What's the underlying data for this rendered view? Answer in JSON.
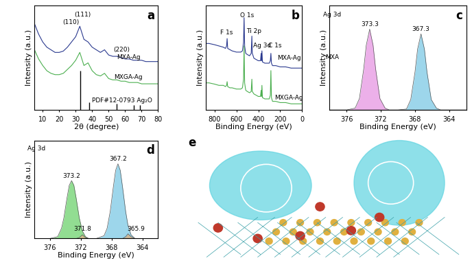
{
  "chart_data": [
    {
      "type": "line",
      "title": "a",
      "xlabel": "2θ (degree)",
      "ylabel": "Intensity (a.u.)",
      "xlim": [
        5,
        80
      ],
      "ylim": [
        0.2,
        1.0
      ],
      "xticks": [
        10,
        20,
        30,
        40,
        50,
        60,
        70,
        80
      ],
      "yticks": [],
      "tick_labels": "x",
      "x": [
        5,
        7.5,
        10,
        12.5,
        15,
        17.5,
        20,
        22.5,
        25,
        27.5,
        30,
        32.5,
        35,
        37.5,
        40,
        42.5,
        45,
        47.5,
        50,
        52.5,
        55,
        57.5,
        60,
        62.5,
        65,
        67.5,
        70,
        72.5,
        75,
        77.5,
        80
      ],
      "series": [
        {
          "type": "line",
          "color": "#2b3a8f",
          "values": [
            0.86,
            0.78,
            0.72,
            0.68,
            0.66,
            0.64,
            0.64,
            0.65,
            0.68,
            0.72,
            0.76,
            0.84,
            0.74,
            0.72,
            0.68,
            0.66,
            0.64,
            0.66,
            0.62,
            0.61,
            0.61,
            0.6,
            0.59,
            0.59,
            0.58,
            0.58,
            0.58,
            0.57,
            0.57,
            0.57,
            0.57
          ]
        },
        {
          "type": "line",
          "color": "#4caf50",
          "values": [
            0.66,
            0.59,
            0.54,
            0.5,
            0.48,
            0.47,
            0.47,
            0.48,
            0.51,
            0.54,
            0.58,
            0.64,
            0.54,
            0.56,
            0.5,
            0.47,
            0.46,
            0.48,
            0.44,
            0.43,
            0.43,
            0.42,
            0.42,
            0.41,
            0.41,
            0.41,
            0.4,
            0.4,
            0.4,
            0.4,
            0.4
          ]
        },
        {
          "type": "stem",
          "color": "#000000",
          "x": [
            32.8,
            38.1,
            54.9,
            65.4,
            68.8
          ],
          "values": [
            0.5,
            0.26,
            0.25,
            0.24,
            0.24
          ]
        }
      ],
      "annotations": [
        {
          "text": "(110)",
          "x": 27,
          "y": 0.87
        },
        {
          "text": "(111)",
          "x": 34,
          "y": 0.93
        },
        {
          "text": "(220)",
          "x": 58,
          "y": 0.66
        },
        {
          "text": "MXA-Ag",
          "x": 62,
          "y": 0.6
        },
        {
          "text": "MXGA-Ag",
          "x": 62,
          "y": 0.45
        },
        {
          "text": "PDF#12-0793 Ag₂O",
          "x": 58,
          "y": 0.27
        }
      ]
    },
    {
      "type": "line",
      "title": "b",
      "xlabel": "Binding Energy (eV)",
      "ylabel": "Intensity (a.u.)",
      "xlim": [
        880,
        0
      ],
      "ylim": [
        0.2,
        1.05
      ],
      "xticks": [
        800,
        600,
        400,
        200,
        0
      ],
      "yticks": [],
      "tick_labels": "x",
      "x": [
        880,
        850,
        800,
        760,
        720,
        700,
        690,
        685,
        680,
        660,
        640,
        600,
        560,
        545,
        535,
        530,
        525,
        515,
        500,
        480,
        465,
        459,
        455,
        440,
        420,
        400,
        380,
        374,
        370,
        367,
        362,
        340,
        300,
        290,
        285,
        280,
        270,
        240,
        200,
        150,
        100,
        60,
        30,
        0
      ],
      "series": [
        {
          "type": "line",
          "color": "#2b3a8f",
          "values": [
            0.74,
            0.74,
            0.73,
            0.72,
            0.71,
            0.7,
            0.72,
            0.78,
            0.7,
            0.69,
            0.68,
            0.67,
            0.67,
            0.68,
            0.75,
            0.95,
            0.72,
            0.66,
            0.65,
            0.64,
            0.66,
            0.8,
            0.66,
            0.62,
            0.61,
            0.6,
            0.6,
            0.66,
            0.6,
            0.68,
            0.59,
            0.58,
            0.58,
            0.6,
            0.66,
            0.58,
            0.56,
            0.56,
            0.55,
            0.55,
            0.54,
            0.54,
            0.54,
            0.54
          ]
        },
        {
          "type": "line",
          "color": "#4caf50",
          "values": [
            0.42,
            0.42,
            0.41,
            0.4,
            0.4,
            0.39,
            0.4,
            0.43,
            0.39,
            0.38,
            0.38,
            0.37,
            0.37,
            0.38,
            0.45,
            0.72,
            0.42,
            0.36,
            0.35,
            0.34,
            0.35,
            0.45,
            0.35,
            0.33,
            0.32,
            0.31,
            0.31,
            0.36,
            0.31,
            0.4,
            0.3,
            0.29,
            0.29,
            0.32,
            0.52,
            0.3,
            0.27,
            0.27,
            0.26,
            0.26,
            0.25,
            0.25,
            0.25,
            0.25
          ]
        }
      ],
      "annotations": [
        {
          "text": "F 1s",
          "x": 690,
          "y": 0.83
        },
        {
          "text": "O 1s",
          "x": 505,
          "y": 0.97
        },
        {
          "text": "Ti 2p",
          "x": 440,
          "y": 0.84
        },
        {
          "text": "Ag 3d",
          "x": 368,
          "y": 0.72
        },
        {
          "text": "C 1s",
          "x": 250,
          "y": 0.72
        },
        {
          "text": "MXA-Ag",
          "x": 120,
          "y": 0.62
        },
        {
          "text": "MXGA-Ag",
          "x": 120,
          "y": 0.3
        }
      ]
    },
    {
      "type": "line",
      "title": "c",
      "xlabel": "Binding Energy (eV)",
      "ylabel": "Intensity (a.u.)",
      "xlim": [
        378,
        362
      ],
      "ylim": [
        0,
        1.1
      ],
      "xticks": [
        376,
        372,
        368,
        364
      ],
      "yticks": [],
      "tick_labels": "x",
      "x": [
        378,
        377,
        376,
        375,
        374.5,
        374.0,
        373.7,
        373.3,
        372.9,
        372.6,
        372.1,
        371.5,
        371,
        370,
        369,
        368.5,
        368.0,
        367.7,
        367.3,
        366.9,
        366.6,
        366.1,
        365.5,
        365,
        364,
        363,
        362
      ],
      "series": [
        {
          "type": "area",
          "color": "#e9a3e6",
          "values": [
            0,
            0,
            0,
            0.02,
            0.12,
            0.43,
            0.68,
            0.85,
            0.68,
            0.43,
            0.12,
            0.02,
            0,
            0,
            0,
            0,
            0,
            0,
            0,
            0,
            0,
            0,
            0,
            0,
            0,
            0,
            0
          ]
        },
        {
          "type": "area",
          "color": "#8ccfe8",
          "values": [
            0,
            0,
            0,
            0,
            0,
            0,
            0,
            0,
            0,
            0,
            0,
            0,
            0,
            0,
            0.01,
            0.11,
            0.4,
            0.64,
            0.8,
            0.64,
            0.4,
            0.11,
            0.02,
            0,
            0,
            0,
            0
          ]
        }
      ],
      "annotations": [
        {
          "text": "Ag 3d",
          "x": 377.7,
          "y": 1.0
        },
        {
          "text": "MXA",
          "x": 377.7,
          "y": 0.55
        },
        {
          "text": "373.3",
          "x": 373.3,
          "y": 0.9
        },
        {
          "text": "367.3",
          "x": 367.3,
          "y": 0.85
        }
      ]
    },
    {
      "type": "line",
      "title": "d",
      "xlabel": "Binding Energy (eV)",
      "ylabel": "Intensity (a.u.)",
      "xlim": [
        378,
        362
      ],
      "ylim": [
        0,
        1.05
      ],
      "xticks": [
        376,
        372,
        368,
        364
      ],
      "yticks": [],
      "tick_labels": "x",
      "x": [
        378,
        377,
        376,
        375,
        374.5,
        374.2,
        373.8,
        373.5,
        373.2,
        372.9,
        372.6,
        372.2,
        371.8,
        371.4,
        371,
        370,
        369,
        368.6,
        368.2,
        367.8,
        367.5,
        367.2,
        366.9,
        366.6,
        366.2,
        365.9,
        365.5,
        365,
        364,
        363,
        362
      ],
      "series": [
        {
          "type": "area",
          "color": "#7fd77f",
          "values": [
            0,
            0,
            0,
            0.02,
            0.11,
            0.22,
            0.43,
            0.57,
            0.62,
            0.57,
            0.43,
            0.22,
            0.08,
            0.02,
            0,
            0,
            0,
            0,
            0,
            0,
            0,
            0,
            0,
            0,
            0,
            0,
            0,
            0,
            0,
            0,
            0
          ]
        },
        {
          "type": "area",
          "color": "#8ccfe8",
          "values": [
            0,
            0,
            0,
            0,
            0,
            0,
            0,
            0,
            0,
            0,
            0,
            0,
            0,
            0,
            0,
            0,
            0.03,
            0.11,
            0.29,
            0.55,
            0.73,
            0.8,
            0.73,
            0.55,
            0.29,
            0.14,
            0.04,
            0,
            0,
            0,
            0
          ]
        },
        {
          "type": "area",
          "color": "#d9b48a",
          "values": [
            0,
            0,
            0,
            0,
            0,
            0,
            0,
            0,
            0,
            0,
            0,
            0.01,
            0.04,
            0.01,
            0,
            0,
            0,
            0,
            0,
            0,
            0,
            0,
            0,
            0,
            0,
            0,
            0,
            0,
            0,
            0,
            0
          ]
        },
        {
          "type": "area",
          "color": "#d9b48a",
          "values": [
            0,
            0,
            0,
            0,
            0,
            0,
            0,
            0,
            0,
            0,
            0,
            0,
            0,
            0,
            0,
            0,
            0,
            0,
            0,
            0,
            0,
            0,
            0,
            0,
            0.02,
            0.05,
            0.02,
            0,
            0,
            0,
            0
          ]
        }
      ],
      "annotations": [
        {
          "text": "Ag 3d",
          "x": 377.7,
          "y": 0.96
        },
        {
          "text": "373.2",
          "x": 373.2,
          "y": 0.67
        },
        {
          "text": "367.2",
          "x": 367.2,
          "y": 0.85
        },
        {
          "text": "371.8",
          "x": 371.8,
          "y": 0.1
        },
        {
          "text": "365.9",
          "x": 364.9,
          "y": 0.1
        }
      ]
    }
  ],
  "diagram": {
    "label": "e"
  }
}
